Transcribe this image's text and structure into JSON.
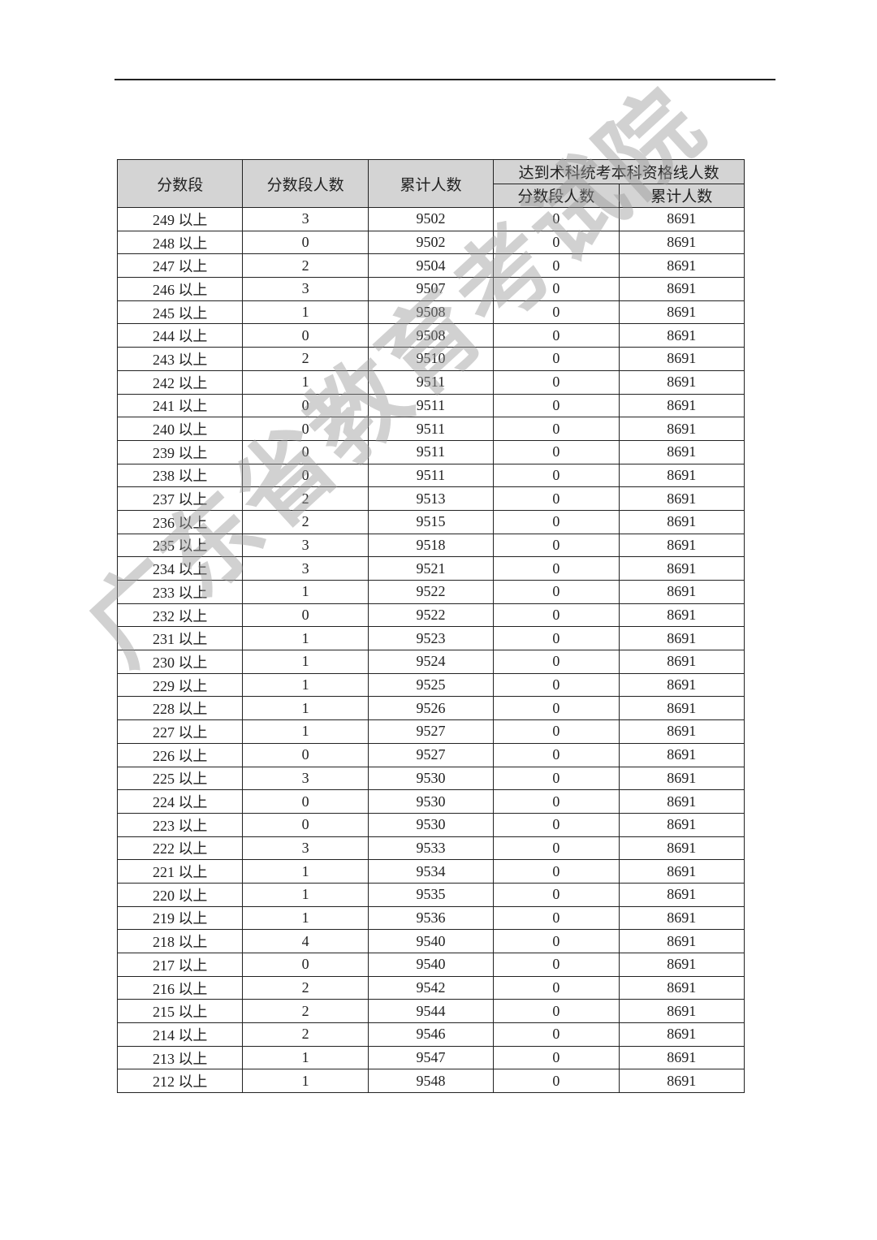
{
  "header": {
    "score_band": "分数段",
    "band_count": "分数段人数",
    "cumulative": "累计人数",
    "qualified_group": "达到术科统考本科资格线人数",
    "qualified_band_count": "分数段人数",
    "qualified_cumulative": "累计人数"
  },
  "rows": [
    [
      "249 以上",
      "3",
      "9502",
      "0",
      "8691"
    ],
    [
      "248 以上",
      "0",
      "9502",
      "0",
      "8691"
    ],
    [
      "247 以上",
      "2",
      "9504",
      "0",
      "8691"
    ],
    [
      "246 以上",
      "3",
      "9507",
      "0",
      "8691"
    ],
    [
      "245 以上",
      "1",
      "9508",
      "0",
      "8691"
    ],
    [
      "244 以上",
      "0",
      "9508",
      "0",
      "8691"
    ],
    [
      "243 以上",
      "2",
      "9510",
      "0",
      "8691"
    ],
    [
      "242 以上",
      "1",
      "9511",
      "0",
      "8691"
    ],
    [
      "241 以上",
      "0",
      "9511",
      "0",
      "8691"
    ],
    [
      "240 以上",
      "0",
      "9511",
      "0",
      "8691"
    ],
    [
      "239 以上",
      "0",
      "9511",
      "0",
      "8691"
    ],
    [
      "238 以上",
      "0",
      "9511",
      "0",
      "8691"
    ],
    [
      "237 以上",
      "2",
      "9513",
      "0",
      "8691"
    ],
    [
      "236 以上",
      "2",
      "9515",
      "0",
      "8691"
    ],
    [
      "235 以上",
      "3",
      "9518",
      "0",
      "8691"
    ],
    [
      "234 以上",
      "3",
      "9521",
      "0",
      "8691"
    ],
    [
      "233 以上",
      "1",
      "9522",
      "0",
      "8691"
    ],
    [
      "232 以上",
      "0",
      "9522",
      "0",
      "8691"
    ],
    [
      "231 以上",
      "1",
      "9523",
      "0",
      "8691"
    ],
    [
      "230 以上",
      "1",
      "9524",
      "0",
      "8691"
    ],
    [
      "229 以上",
      "1",
      "9525",
      "0",
      "8691"
    ],
    [
      "228 以上",
      "1",
      "9526",
      "0",
      "8691"
    ],
    [
      "227 以上",
      "1",
      "9527",
      "0",
      "8691"
    ],
    [
      "226 以上",
      "0",
      "9527",
      "0",
      "8691"
    ],
    [
      "225 以上",
      "3",
      "9530",
      "0",
      "8691"
    ],
    [
      "224 以上",
      "0",
      "9530",
      "0",
      "8691"
    ],
    [
      "223 以上",
      "0",
      "9530",
      "0",
      "8691"
    ],
    [
      "222 以上",
      "3",
      "9533",
      "0",
      "8691"
    ],
    [
      "221 以上",
      "1",
      "9534",
      "0",
      "8691"
    ],
    [
      "220 以上",
      "1",
      "9535",
      "0",
      "8691"
    ],
    [
      "219 以上",
      "1",
      "9536",
      "0",
      "8691"
    ],
    [
      "218 以上",
      "4",
      "9540",
      "0",
      "8691"
    ],
    [
      "217 以上",
      "0",
      "9540",
      "0",
      "8691"
    ],
    [
      "216 以上",
      "2",
      "9542",
      "0",
      "8691"
    ],
    [
      "215 以上",
      "2",
      "9544",
      "0",
      "8691"
    ],
    [
      "214 以上",
      "2",
      "9546",
      "0",
      "8691"
    ],
    [
      "213 以上",
      "1",
      "9547",
      "0",
      "8691"
    ],
    [
      "212 以上",
      "1",
      "9548",
      "0",
      "8691"
    ]
  ],
  "watermark": "广东省教育考试院"
}
